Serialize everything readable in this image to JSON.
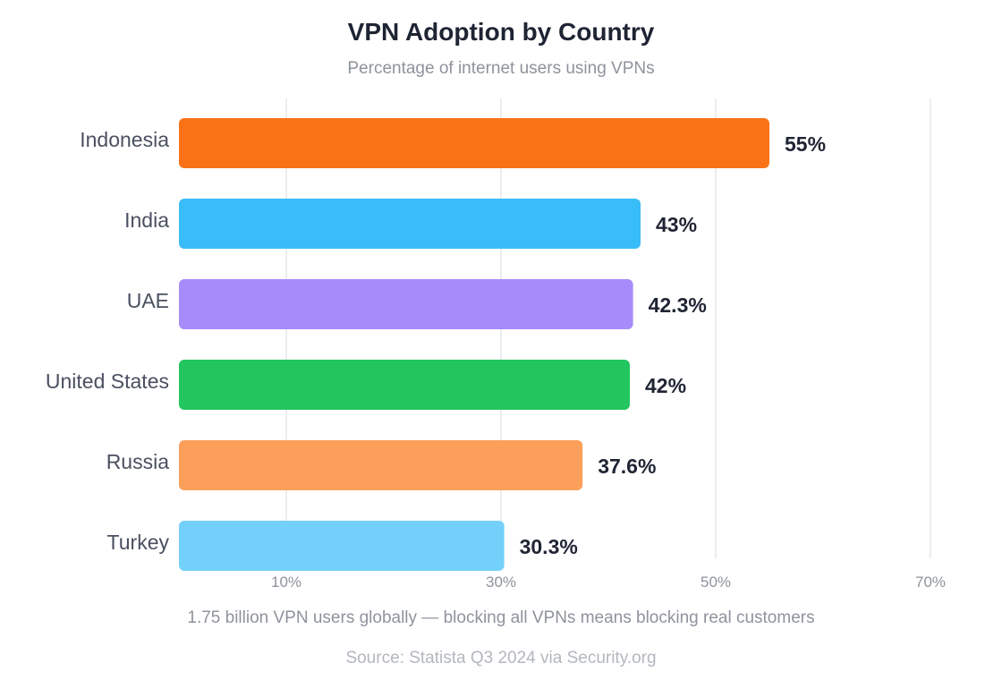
{
  "chart_data": {
    "type": "bar",
    "orientation": "horizontal",
    "title": "VPN Adoption by Country",
    "subtitle": "Percentage of internet users using VPNs",
    "categories": [
      "Indonesia",
      "India",
      "UAE",
      "United States",
      "Russia",
      "Turkey"
    ],
    "values": [
      55,
      43,
      42.3,
      42,
      37.6,
      30.3
    ],
    "value_labels": [
      "55%",
      "43%",
      "42.3%",
      "42%",
      "37.6%",
      "30.3%"
    ],
    "colors": [
      "#f97316",
      "#38bdf8",
      "#a78bfa",
      "#22c55e",
      "#fb9f5b",
      "#73d0fa"
    ],
    "x_ticks": [
      10,
      30,
      50,
      70
    ],
    "x_tick_labels": [
      "10%",
      "30%",
      "50%",
      "70%"
    ],
    "xlim": [
      0,
      70
    ],
    "xlabel": "",
    "ylabel": "",
    "grid": true,
    "legend": "none"
  },
  "footnote": "1.75 billion VPN users globally — blocking all VPNs means blocking real customers",
  "source": "Source: Statista Q3 2024 via Security.org"
}
